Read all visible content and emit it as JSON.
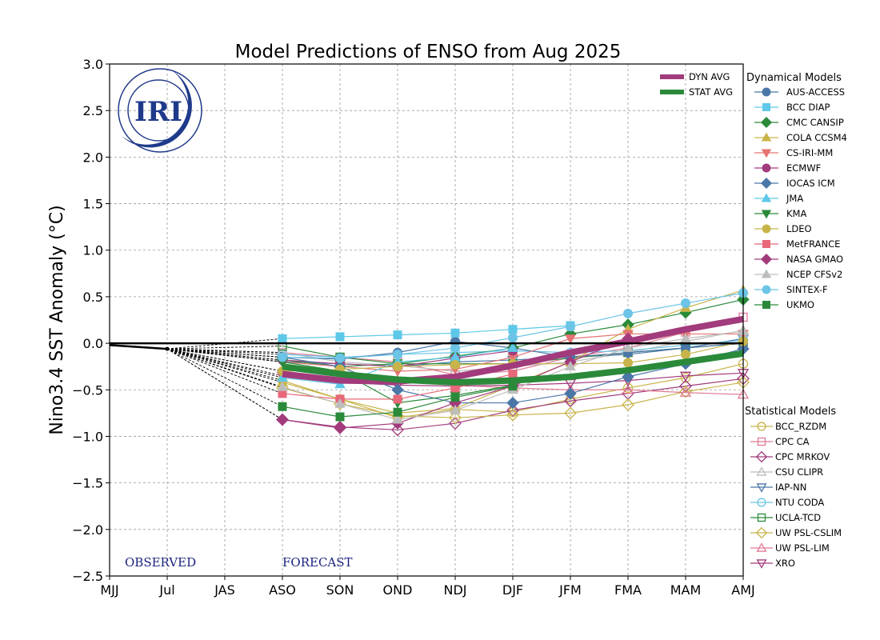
{
  "chart_data": {
    "type": "line",
    "title": "Model Predictions of ENSO from Aug 2025",
    "xlabel": "",
    "ylabel": "Nino3.4 SST Anomaly (°C)",
    "ylim": [
      -2.5,
      3.0
    ],
    "yticks": [
      "−2.5",
      "−2.0",
      "−1.5",
      "−1.0",
      "−0.5",
      "0.0",
      "0.5",
      "1.0",
      "1.5",
      "2.0",
      "2.5",
      "3.0"
    ],
    "ytick_values": [
      -2.5,
      -2.0,
      -1.5,
      -1.0,
      -0.5,
      0.0,
      0.5,
      1.0,
      1.5,
      2.0,
      2.5,
      3.0
    ],
    "categories": [
      "MJJ",
      "Jul",
      "JAS",
      "ASO",
      "SON",
      "OND",
      "NDJ",
      "DJF",
      "JFM",
      "FMA",
      "MAM",
      "AMJ"
    ],
    "grid": true,
    "zero_line": 0.0,
    "annotations": {
      "observed": "OBSERVED",
      "forecast": "FORECAST"
    },
    "logo_text": "IRI",
    "observed": {
      "x": [
        "MJJ",
        "Jul"
      ],
      "values": [
        -0.02,
        -0.06
      ]
    },
    "forecast_categories": [
      "ASO",
      "SON",
      "OND",
      "NDJ",
      "DJF",
      "JFM",
      "FMA",
      "MAM",
      "AMJ"
    ],
    "legend_dynamical_title": "Dynamical Models",
    "legend_statistical_title": "Statistical Models",
    "legend_placement": "right",
    "averages": [
      {
        "name": "DYN AVG",
        "color": "#a23b7c",
        "values": [
          -0.33,
          -0.4,
          -0.41,
          -0.36,
          -0.24,
          -0.1,
          0.02,
          0.15,
          0.26
        ]
      },
      {
        "name": "STAT AVG",
        "color": "#2a8a3a",
        "values": [
          -0.25,
          -0.33,
          -0.39,
          -0.42,
          -0.4,
          -0.36,
          -0.29,
          -0.2,
          -0.11
        ]
      }
    ],
    "dynamical_models": [
      {
        "name": "AUS-ACCESS",
        "color": "#4a77a8",
        "marker": "circle",
        "values": [
          -0.15,
          -0.17,
          -0.1,
          0.02,
          -0.05,
          -0.15,
          -0.1,
          -0.05,
          0.0
        ]
      },
      {
        "name": "BCC DIAP",
        "color": "#5ec8e8",
        "marker": "square",
        "values": [
          0.05,
          0.07,
          0.09,
          0.11,
          0.15,
          0.19,
          null,
          null,
          null
        ]
      },
      {
        "name": "CMC CANSIP",
        "color": "#2a8a3a",
        "marker": "diamond",
        "values": [
          -0.18,
          -0.25,
          -0.22,
          -0.14,
          -0.05,
          0.1,
          0.2,
          0.33,
          0.47
        ]
      },
      {
        "name": "COLA CCSM4",
        "color": "#c8b44a",
        "marker": "triangle-up",
        "values": [
          -0.42,
          -0.6,
          -0.75,
          -0.7,
          -0.45,
          -0.2,
          0.15,
          0.38,
          0.57
        ]
      },
      {
        "name": "CS-IRI-MM",
        "color": "#e57373",
        "marker": "triangle-down",
        "values": [
          -0.2,
          -0.25,
          -0.3,
          -0.28,
          -0.15,
          0.05,
          0.1,
          0.1,
          0.1
        ]
      },
      {
        "name": "ECMWF",
        "color": "#a23b7c",
        "marker": "circle",
        "values": [
          -0.18,
          -0.22,
          -0.25,
          -0.16,
          -0.08,
          null,
          null,
          null,
          null
        ]
      },
      {
        "name": "IOCAS ICM",
        "color": "#4a77a8",
        "marker": "diamond",
        "values": [
          -0.15,
          -0.25,
          -0.5,
          -0.64,
          -0.64,
          -0.54,
          -0.36,
          -0.22,
          -0.06
        ]
      },
      {
        "name": "JMA",
        "color": "#5ec8e8",
        "marker": "triangle-up",
        "values": [
          -0.37,
          -0.44,
          -0.2,
          -0.15,
          -0.05,
          null,
          null,
          null,
          null
        ]
      },
      {
        "name": "KMA",
        "color": "#2a8a3a",
        "marker": "triangle-down",
        "values": [
          -0.2,
          -0.3,
          -0.64,
          -0.56,
          -0.45,
          null,
          null,
          null,
          null
        ]
      },
      {
        "name": "LDEO",
        "color": "#c8b44a",
        "marker": "circle",
        "values": [
          -0.3,
          -0.28,
          -0.25,
          -0.23,
          -0.22,
          -0.22,
          -0.21,
          -0.12,
          0.02
        ]
      },
      {
        "name": "MetFRANCE",
        "color": "#e8687a",
        "marker": "square",
        "values": [
          -0.54,
          -0.6,
          -0.6,
          -0.48,
          -0.33,
          null,
          null,
          null,
          null
        ]
      },
      {
        "name": "NASA GMAO",
        "color": "#a23b7c",
        "marker": "diamond",
        "values": [
          -0.82,
          -0.91,
          -0.86,
          -0.64,
          -0.46,
          -0.2,
          0.05,
          null,
          null
        ]
      },
      {
        "name": "NCEP CFSv2",
        "color": "#bdbdbd",
        "marker": "triangle-up",
        "values": [
          -0.47,
          -0.65,
          -0.82,
          -0.72,
          -0.5,
          -0.25,
          -0.05,
          0.05,
          0.13
        ]
      },
      {
        "name": "SINTEX-F",
        "color": "#6cc4e6",
        "marker": "circle",
        "values": [
          -0.15,
          -0.16,
          -0.12,
          -0.05,
          0.06,
          0.18,
          0.32,
          0.43,
          0.54
        ]
      },
      {
        "name": "UKMO",
        "color": "#2a8a3a",
        "marker": "square",
        "values": [
          -0.68,
          -0.79,
          -0.74,
          -0.58,
          -0.46,
          null,
          null,
          null,
          null
        ]
      }
    ],
    "statistical_models": [
      {
        "name": "BCC_RZDM",
        "color": "#c8b44a",
        "marker": "circle-open",
        "values": [
          -0.4,
          -0.6,
          -0.8,
          -0.71,
          -0.74,
          -0.6,
          -0.48,
          -0.37,
          -0.22
        ]
      },
      {
        "name": "CPC CA",
        "color": "#e07b94",
        "marker": "square-open",
        "values": [
          -0.1,
          -0.15,
          -0.2,
          -0.34,
          -0.3,
          -0.15,
          -0.05,
          0.12,
          0.28
        ]
      },
      {
        "name": "CPC MRKOV",
        "color": "#a23b7c",
        "marker": "diamond-open",
        "values": [
          -0.82,
          -0.9,
          -0.93,
          -0.86,
          -0.72,
          -0.62,
          -0.54,
          -0.46,
          -0.38
        ]
      },
      {
        "name": "CSU CLIPR",
        "color": "#bdbdbd",
        "marker": "triangle-up-open",
        "values": [
          -0.1,
          -0.2,
          -0.24,
          -0.3,
          -0.25,
          -0.2,
          -0.1,
          0.02,
          0.14
        ]
      },
      {
        "name": "IAP-NN",
        "color": "#4a77a8",
        "marker": "triangle-down-open",
        "values": [
          -0.2,
          -0.22,
          -0.25,
          -0.2,
          -0.18,
          -0.15,
          -0.12,
          -0.05,
          0.05
        ]
      },
      {
        "name": "NTU CODA",
        "color": "#6cc4e6",
        "marker": "circle-open",
        "values": [
          -0.12,
          -0.15,
          -0.12,
          -0.1,
          -0.08,
          -0.1,
          -0.08,
          -0.02,
          0.03
        ]
      },
      {
        "name": "UCLA-TCD",
        "color": "#2a8a3a",
        "marker": "square-open",
        "values": [
          -0.03,
          -0.15,
          -0.22,
          -0.22,
          -0.22,
          -0.16,
          -0.1,
          -0.05,
          0.0
        ]
      },
      {
        "name": "UW PSL-CSLIM",
        "color": "#c8b44a",
        "marker": "diamond-open",
        "values": [
          -0.48,
          -0.65,
          -0.78,
          -0.8,
          -0.77,
          -0.75,
          -0.66,
          -0.52,
          -0.42
        ]
      },
      {
        "name": "UW PSL-LIM",
        "color": "#e07b94",
        "marker": "triangle-up-open",
        "values": [
          -0.3,
          -0.38,
          -0.4,
          -0.45,
          -0.48,
          -0.5,
          -0.5,
          -0.53,
          -0.55
        ]
      },
      {
        "name": "XRO",
        "color": "#a23b7c",
        "marker": "triangle-down-open",
        "values": [
          -0.35,
          -0.42,
          -0.45,
          -0.46,
          -0.45,
          -0.43,
          -0.4,
          -0.35,
          -0.32
        ]
      }
    ]
  }
}
